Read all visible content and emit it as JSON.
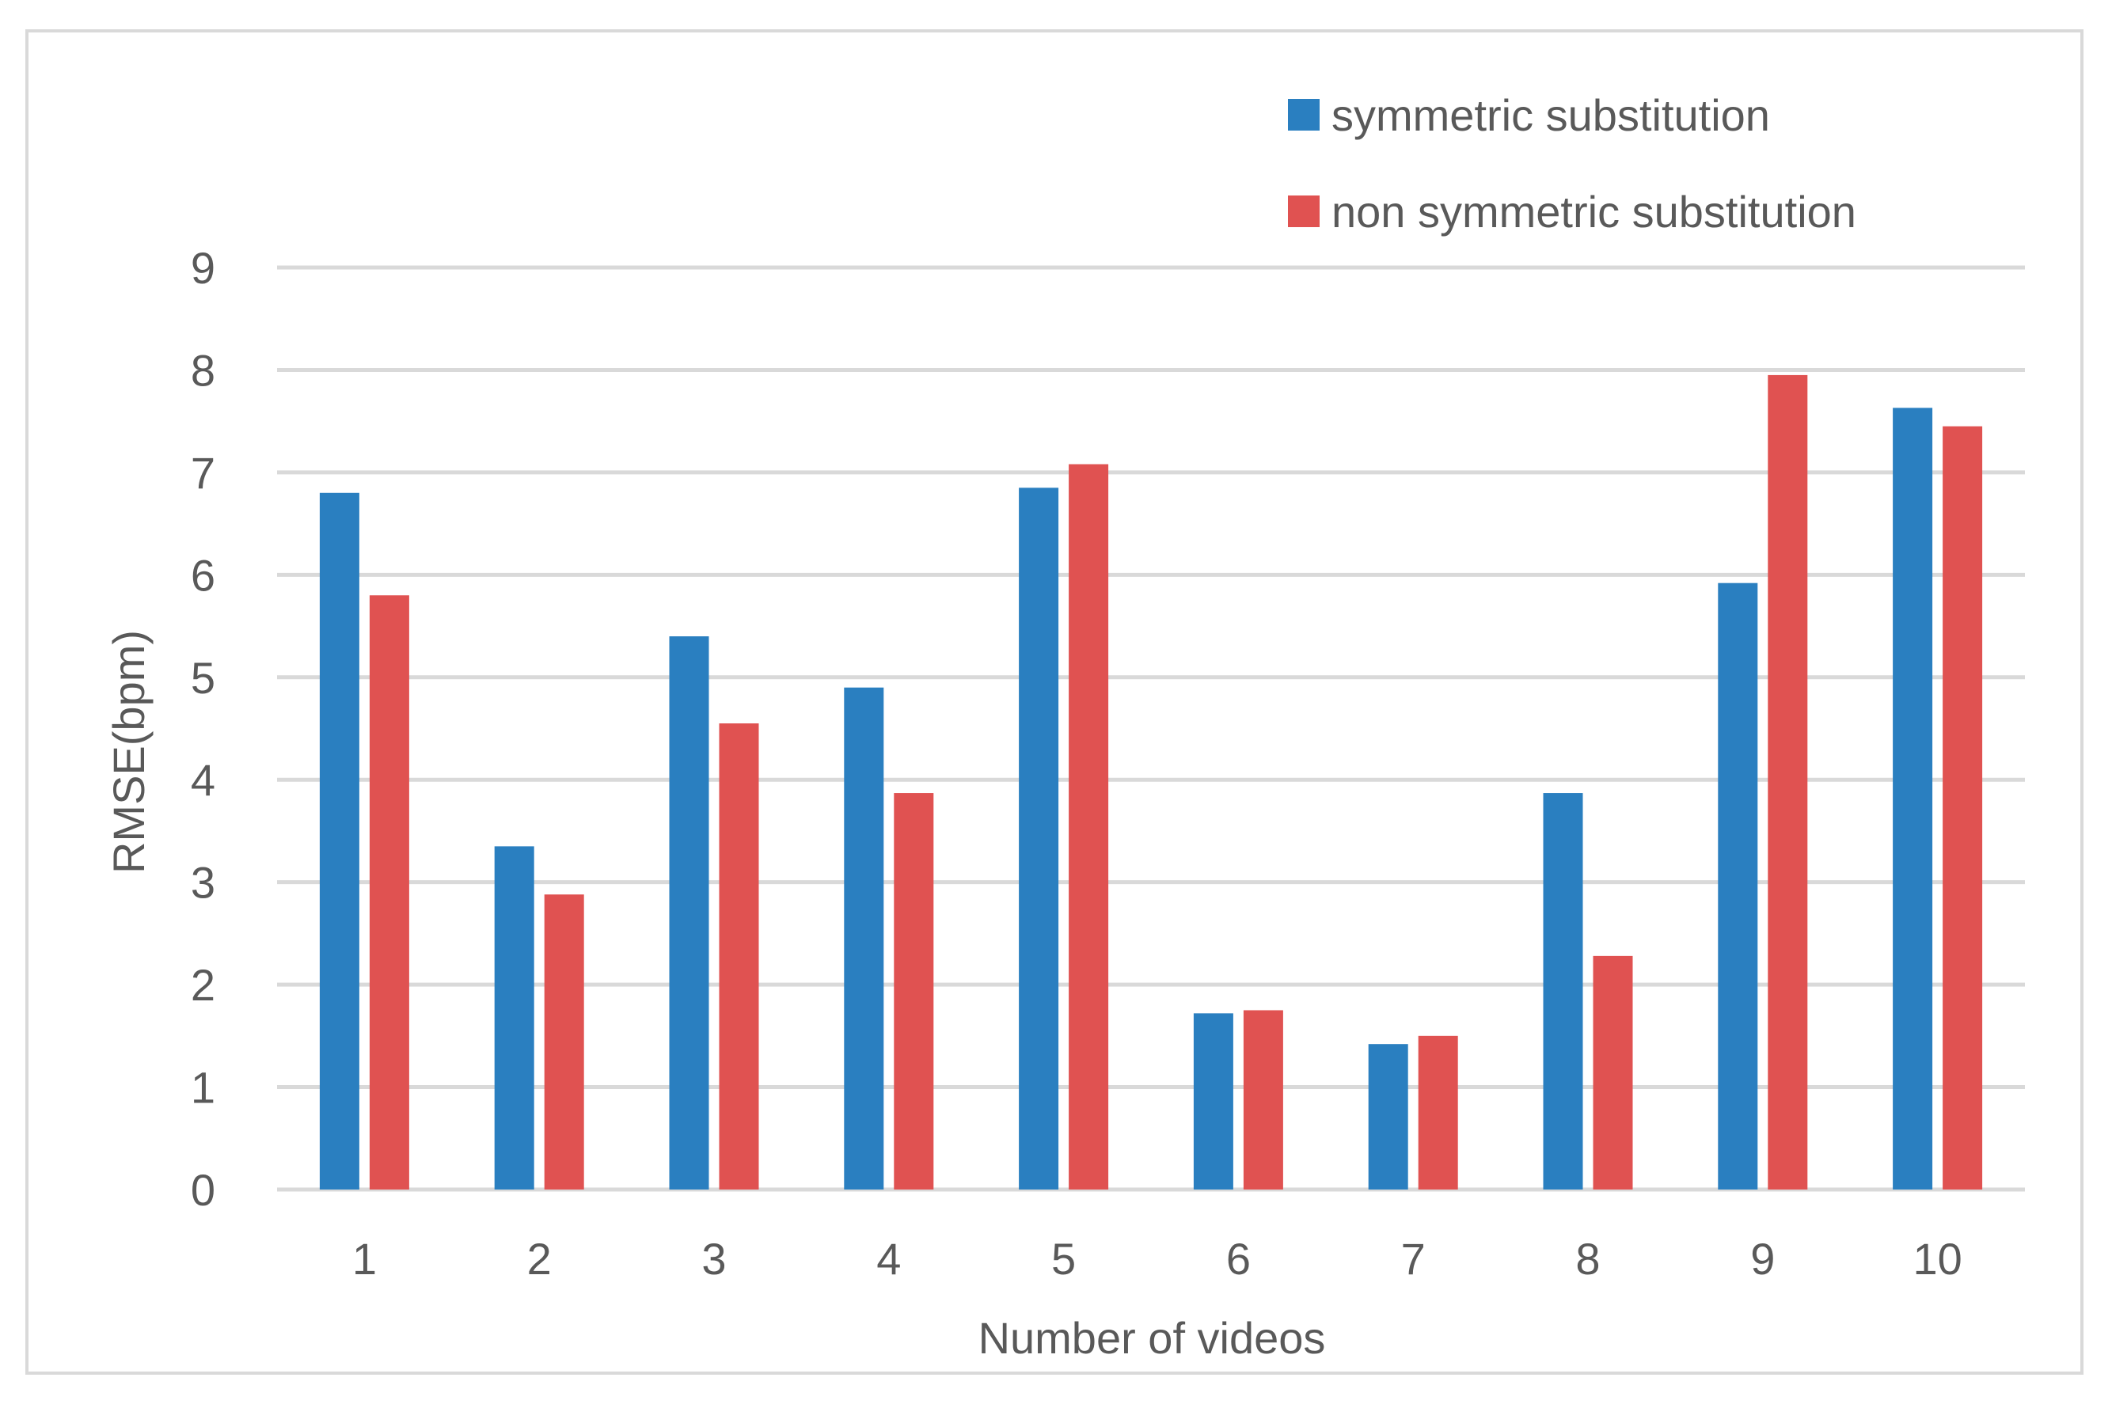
{
  "chart_data": {
    "type": "bar",
    "title": "",
    "xlabel": "Number of videos",
    "ylabel": "RMSE(bpm)",
    "categories": [
      "1",
      "2",
      "3",
      "4",
      "5",
      "6",
      "7",
      "8",
      "9",
      "10"
    ],
    "series": [
      {
        "name": "symmetric substitution",
        "color": "#2a7fc0",
        "values": [
          6.8,
          3.35,
          5.4,
          4.9,
          6.85,
          1.72,
          1.42,
          3.87,
          5.92,
          7.63
        ]
      },
      {
        "name": "non symmetric substitution",
        "color": "#e05251",
        "values": [
          5.8,
          2.88,
          4.55,
          3.87,
          7.08,
          1.75,
          1.5,
          2.28,
          7.95,
          7.45
        ]
      }
    ],
    "yticks": [
      "0",
      "1",
      "2",
      "3",
      "4",
      "5",
      "6",
      "7",
      "8",
      "9"
    ],
    "ylim": [
      0,
      9
    ],
    "grid": true,
    "legend_position": "top-right"
  },
  "colors": {
    "gridline": "#d9d9d9",
    "text": "#595959",
    "frame": "#d9d9d9"
  }
}
